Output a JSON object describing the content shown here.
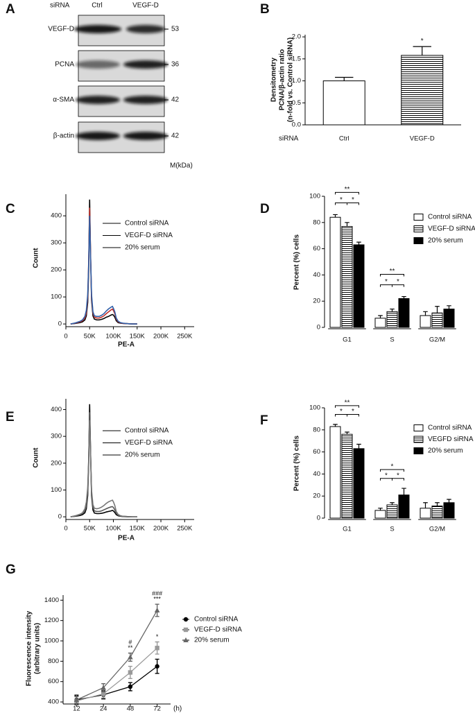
{
  "blot": {
    "panel": "A",
    "header_label": "siRNA",
    "lanes": [
      "Ctrl",
      "VEGF-D"
    ],
    "rows": [
      {
        "label": "VEGF-D",
        "size": 53
      },
      {
        "label": "PCNA",
        "size": 36
      },
      {
        "label": "α-SMA",
        "size": 42
      },
      {
        "label": "β-actin",
        "size": 42
      }
    ],
    "size_unit": "M(kDa)"
  },
  "chart_data": [
    {
      "panel": "B",
      "type": "bar",
      "ylabel": [
        "Densitometry",
        "PCNA/β-actin ratio",
        "(n-fold vs. Control siRNA)"
      ],
      "xlabel": "siRNA",
      "categories": [
        "Ctrl",
        "VEGF-D"
      ],
      "values": [
        1.0,
        1.58
      ],
      "errors": [
        0.08,
        0.2
      ],
      "bar_styles": [
        "open",
        "horizontal-lines"
      ],
      "color": "#000000",
      "ylim": [
        0,
        2.05
      ],
      "yticks": [
        {
          "value": 0,
          "label": "0.0"
        },
        {
          "value": 0.5,
          "label": "0.5"
        },
        {
          "value": 1,
          "label": "1.0"
        },
        {
          "value": 1.5,
          "label": "1.5"
        },
        {
          "value": 2,
          "label": "2.0"
        }
      ],
      "annotations": [
        {
          "category": "VEGF-D",
          "labels": [
            "*"
          ]
        }
      ],
      "grid": false
    },
    {
      "panel": "C",
      "type": "line",
      "xlabel": "PE-A",
      "ylabel": "Count",
      "x": [
        10000,
        20000,
        30000,
        35000,
        40000,
        43000,
        46000,
        48000,
        50000,
        52000,
        54000,
        57000,
        60000,
        65000,
        70000,
        75000,
        80000,
        85000,
        90000,
        95000,
        98000,
        100000,
        103000,
        106000,
        110000,
        115000,
        120000,
        130000,
        140000,
        150000
      ],
      "xlim": [
        0,
        270000
      ],
      "xticks": [
        0,
        {
          "value": 50000,
          "label": "50K"
        },
        {
          "value": 100000,
          "label": "100K"
        },
        {
          "value": 150000,
          "label": "150K"
        },
        {
          "value": 200000,
          "label": "200K"
        },
        {
          "value": 250000,
          "label": "250K"
        }
      ],
      "ylim": [
        -10,
        480
      ],
      "yticks": [
        0,
        100,
        200,
        300,
        400
      ],
      "grid": false,
      "series": [
        {
          "name": "Control siRNA",
          "color": "#000000",
          "values": [
            0,
            2,
            5,
            8,
            15,
            30,
            80,
            200,
            460,
            250,
            90,
            30,
            18,
            15,
            15,
            17,
            20,
            25,
            28,
            33,
            35,
            33,
            25,
            12,
            5,
            3,
            2,
            1,
            0,
            0
          ]
        },
        {
          "name": "VEGF-D siRNA",
          "color": "#c0302a",
          "values": [
            0,
            3,
            8,
            12,
            22,
            40,
            100,
            230,
            430,
            260,
            100,
            40,
            25,
            22,
            22,
            25,
            30,
            38,
            45,
            52,
            55,
            50,
            38,
            18,
            8,
            4,
            2,
            1,
            0,
            0
          ]
        },
        {
          "name": "20% serum",
          "color": "#2f5fa8",
          "values": [
            0,
            4,
            10,
            15,
            28,
            50,
            110,
            220,
            400,
            250,
            110,
            45,
            30,
            28,
            28,
            32,
            38,
            48,
            56,
            62,
            65,
            58,
            45,
            22,
            10,
            5,
            3,
            1,
            0,
            0
          ]
        }
      ]
    },
    {
      "panel": "D",
      "type": "bar",
      "ylabel": "Percent (%) cells",
      "categories": [
        "G1",
        "S",
        "G2/M"
      ],
      "color": "#000000",
      "ylim": [
        0,
        100
      ],
      "yticks": [
        0,
        20,
        40,
        60,
        80,
        100
      ],
      "grid": false,
      "series": [
        {
          "name": "Control siRNA",
          "style": "open",
          "values": [
            84,
            7,
            9
          ],
          "errors": [
            2,
            2,
            3
          ]
        },
        {
          "name": "VEGF-D siRNA",
          "style": "horizontal-lines",
          "values": [
            77,
            12,
            11
          ],
          "errors": [
            3,
            2,
            5
          ]
        },
        {
          "name": "20% serum",
          "style": "solid",
          "values": [
            63,
            22,
            14
          ],
          "errors": [
            2,
            1.5,
            2.5
          ]
        }
      ],
      "annotations": [
        {
          "category": "G1",
          "labels": [
            "**",
            "*",
            "*"
          ]
        },
        {
          "category": "S",
          "labels": [
            "**",
            "*",
            "*"
          ]
        }
      ]
    },
    {
      "panel": "E",
      "type": "line",
      "xlabel": "PE-A",
      "ylabel": "Count",
      "x": [
        10000,
        20000,
        30000,
        35000,
        40000,
        43000,
        46000,
        48000,
        50000,
        52000,
        54000,
        57000,
        60000,
        65000,
        70000,
        75000,
        80000,
        85000,
        90000,
        95000,
        98000,
        100000,
        103000,
        106000,
        110000,
        115000,
        120000,
        130000,
        140000,
        150000
      ],
      "xlim": [
        0,
        270000
      ],
      "xticks": [
        0,
        {
          "value": 50000,
          "label": "50K"
        },
        {
          "value": 100000,
          "label": "100K"
        },
        {
          "value": 150000,
          "label": "150K"
        },
        {
          "value": 200000,
          "label": "200K"
        },
        {
          "value": 250000,
          "label": "250K"
        }
      ],
      "ylim": [
        -10,
        440
      ],
      "yticks": [
        0,
        100,
        200,
        300,
        400
      ],
      "grid": false,
      "series": [
        {
          "name": "Control siRNA",
          "color": "#000000",
          "values": [
            0,
            2,
            5,
            8,
            15,
            30,
            80,
            200,
            420,
            240,
            80,
            25,
            14,
            12,
            12,
            13,
            15,
            18,
            20,
            22,
            24,
            22,
            16,
            8,
            4,
            2,
            1,
            0,
            0,
            0
          ]
        },
        {
          "name": "VEGF-D siRNA",
          "color": "#555555",
          "values": [
            0,
            3,
            8,
            12,
            22,
            40,
            95,
            215,
            390,
            240,
            90,
            35,
            22,
            20,
            20,
            22,
            26,
            30,
            34,
            37,
            38,
            35,
            26,
            13,
            6,
            3,
            2,
            1,
            0,
            0
          ]
        },
        {
          "name": "20% serum",
          "color": "#777777",
          "values": [
            0,
            4,
            10,
            15,
            30,
            55,
            110,
            210,
            360,
            230,
            100,
            45,
            32,
            30,
            32,
            36,
            42,
            50,
            56,
            60,
            62,
            56,
            42,
            20,
            9,
            4,
            2,
            1,
            0,
            0
          ]
        }
      ]
    },
    {
      "panel": "F",
      "type": "bar",
      "ylabel": "Percent (%) cells",
      "categories": [
        "G1",
        "S",
        "G2/M"
      ],
      "color": "#000000",
      "ylim": [
        0,
        100
      ],
      "yticks": [
        0,
        20,
        40,
        60,
        80,
        100
      ],
      "grid": false,
      "series": [
        {
          "name": "Control siRNA",
          "style": "open",
          "values": [
            83,
            7,
            9
          ],
          "errors": [
            2,
            2,
            5
          ]
        },
        {
          "name": "VEGFD siRNA",
          "style": "horizontal-lines",
          "values": [
            76,
            12,
            11
          ],
          "errors": [
            2,
            2,
            3
          ]
        },
        {
          "name": "20% serum",
          "style": "solid",
          "values": [
            63,
            21,
            14
          ],
          "errors": [
            4,
            6,
            3
          ]
        }
      ],
      "annotations": [
        {
          "category": "G1",
          "labels": [
            "**",
            "*",
            "*"
          ]
        },
        {
          "category": "S",
          "labels": [
            "*",
            "*",
            "*"
          ]
        }
      ]
    },
    {
      "panel": "G",
      "type": "line",
      "ylabel": [
        "Fluorescence intensity",
        "(arbitrary units)"
      ],
      "xlabel": "(h)",
      "categories": [
        "12",
        "24",
        "48",
        "72"
      ],
      "ylim": [
        380,
        1450
      ],
      "yticks": [
        400,
        600,
        800,
        1000,
        1200,
        1400
      ],
      "grid": false,
      "series": [
        {
          "name": "Control siRNA",
          "color": "#000000",
          "marker": "circle",
          "values": [
            420,
            470,
            550,
            750
          ],
          "errors": [
            40,
            40,
            40,
            70
          ]
        },
        {
          "name": "VEGF-D siRNA",
          "color": "#9a9a9a",
          "marker": "square",
          "values": [
            410,
            480,
            690,
            930
          ],
          "errors": [
            40,
            40,
            60,
            60
          ]
        },
        {
          "name": "20% serum",
          "color": "#666666",
          "marker": "triangle",
          "values": [
            420,
            540,
            840,
            1300
          ],
          "errors": [
            50,
            40,
            40,
            60
          ]
        }
      ],
      "annotations": [
        {
          "category": "48",
          "series": "20% serum",
          "labels": [
            "#",
            "**"
          ]
        },
        {
          "category": "72",
          "series": "20% serum",
          "labels": [
            "###",
            "***"
          ]
        },
        {
          "category": "72",
          "series": "VEGF-D siRNA",
          "labels": [
            "*"
          ]
        }
      ]
    }
  ]
}
